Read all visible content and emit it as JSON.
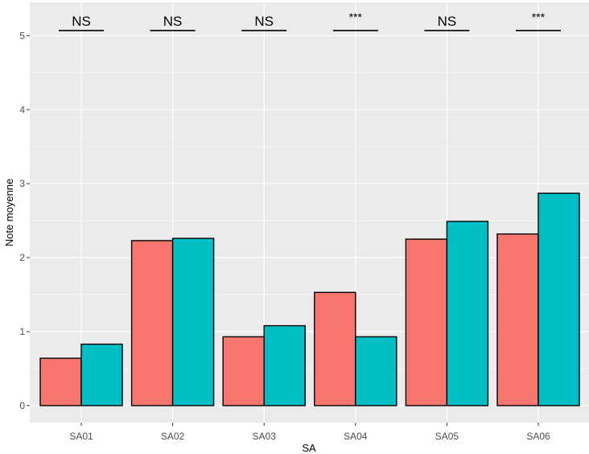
{
  "chart_data": {
    "type": "bar",
    "title": "",
    "xlabel": "SA",
    "ylabel": "Note moyenne",
    "categories": [
      "SA01",
      "SA02",
      "SA03",
      "SA04",
      "SA05",
      "SA06"
    ],
    "series": [
      {
        "values": [
          0.64,
          2.23,
          0.93,
          1.53,
          2.25,
          2.32
        ]
      },
      {
        "values": [
          0.83,
          2.26,
          1.08,
          0.93,
          2.49,
          2.87
        ]
      }
    ],
    "ylim": [
      -0.23,
      5.45
    ],
    "yticks": [
      "0",
      "1",
      "2",
      "3",
      "4",
      "5"
    ],
    "significance": [
      "NS",
      "NS",
      "NS",
      "***",
      "NS",
      "***"
    ],
    "significance_y": 5.07,
    "grid": true,
    "legend": "none"
  },
  "colors": {
    "panel": "#ebebeb",
    "grid_major": "#ffffff",
    "series": [
      "#f8766d",
      "#00bfc4"
    ],
    "outline": "#000000"
  }
}
